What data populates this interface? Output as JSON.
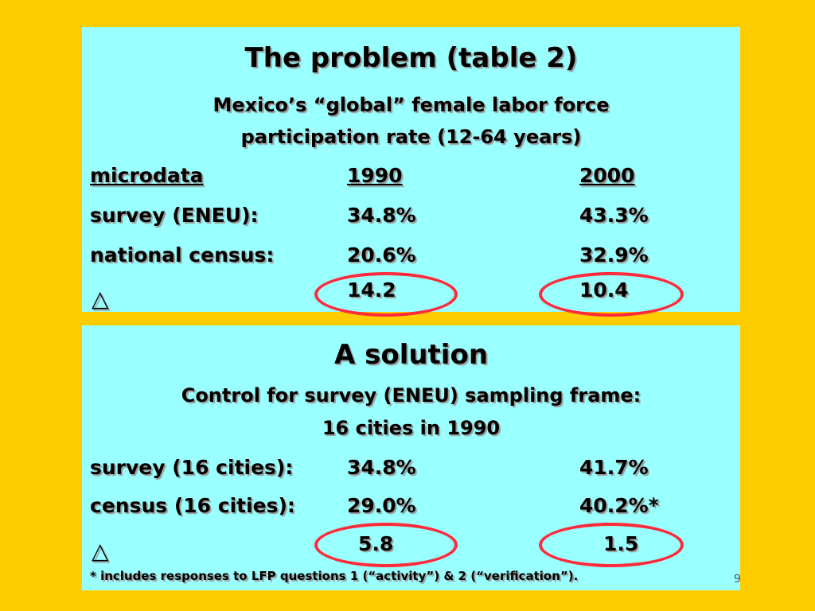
{
  "panel1": {
    "title": "The problem (table 2)",
    "subtitle": [
      "Mexico’s “global” female labor force",
      "participation rate (12-64 years)"
    ],
    "header": [
      "microdata",
      "1990",
      "2000"
    ],
    "rows": [
      [
        "survey (ENEU):",
        "34.8%",
        "43.3%"
      ],
      [
        "national census:",
        "20.6%",
        "32.9%"
      ],
      [
        "△",
        "14.2",
        "10.4"
      ]
    ]
  },
  "panel2": {
    "title": "A solution",
    "subtitle": [
      "Control for survey (ENEU) sampling frame:",
      "16 cities in 1990"
    ],
    "rows": [
      [
        "survey (16 cities):",
        "34.8%",
        "41.7%"
      ],
      [
        "census (16 cities):",
        "29.0%",
        "40.2%*"
      ],
      [
        "△",
        "5.8",
        "1.5"
      ]
    ],
    "footnote": "* includes responses to LFP questions 1 (“activity”) & 2 (“verification”)."
  },
  "page_number": "9"
}
